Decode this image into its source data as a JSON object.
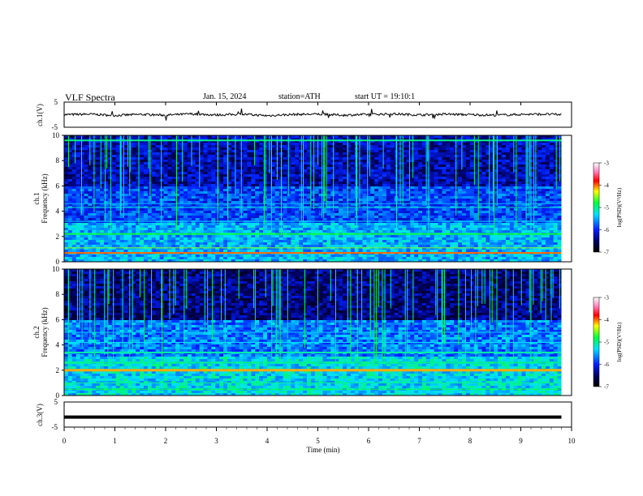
{
  "header": {
    "title": "VLF Spectra",
    "date": "Jan. 15, 2024",
    "station": "station=ATH",
    "start": "start UT = 19:10:1"
  },
  "chart_data": [
    {
      "type": "line",
      "panel": "ch1",
      "ylabel": "ch.1(V)",
      "ylim": [
        -5,
        5
      ],
      "yticks": [
        "5",
        "-5"
      ],
      "xlim": [
        0,
        10
      ],
      "x": [
        0,
        0.5,
        1,
        1.5,
        2,
        2.5,
        3,
        3.5,
        4,
        4.5,
        5,
        5.5,
        6,
        6.5,
        7,
        7.5,
        8,
        8.5,
        9,
        9.5,
        9.8
      ],
      "values": [
        0,
        0.2,
        -0.3,
        0.1,
        -0.2,
        0.3,
        -0.1,
        0.2,
        -0.4,
        0.1,
        0.2,
        -0.2,
        0.1,
        0.3,
        -0.1,
        0.2,
        0.0,
        -0.2,
        0.1,
        0.2,
        0.0
      ],
      "color": "#000000"
    },
    {
      "type": "heatmap",
      "panel": "ch1-spectrogram",
      "ylabel_top": "ch.1",
      "ylabel": "Frequency (kHz)",
      "ylim": [
        0,
        10
      ],
      "yticks": [
        "0",
        "2",
        "4",
        "6",
        "8",
        "10"
      ],
      "xlim": [
        0,
        10
      ],
      "colorbar_label": "log(PSD)(V²/Hz)",
      "colorbar_ticks": [
        "-3",
        "-4",
        "-5",
        "-6",
        "-7"
      ],
      "colorbar_range": [
        -7,
        -3
      ]
    },
    {
      "type": "heatmap",
      "panel": "ch2-spectrogram",
      "ylabel_top": "ch.2",
      "ylabel": "Frequency (kHz)",
      "ylim": [
        0,
        10
      ],
      "yticks": [
        "0",
        "2",
        "4",
        "6",
        "8",
        "10"
      ],
      "xlim": [
        0,
        10
      ],
      "colorbar_label": "log(PSD)(V²/Hz)",
      "colorbar_ticks": [
        "-3",
        "-4",
        "-5",
        "-6",
        "-7"
      ],
      "colorbar_range": [
        -7,
        -3
      ]
    },
    {
      "type": "line",
      "panel": "ch3",
      "ylabel": "ch.3(V)",
      "ylim": [
        -5,
        5
      ],
      "yticks": [
        "5",
        "-5"
      ],
      "xlim": [
        0,
        10
      ],
      "x": [
        0,
        9.8
      ],
      "values": [
        -1,
        -1
      ],
      "color": "#000000"
    }
  ],
  "xaxis": {
    "label": "Time (min)",
    "ticks": [
      "0",
      "1",
      "2",
      "3",
      "4",
      "5",
      "6",
      "7",
      "8",
      "9",
      "10"
    ]
  }
}
